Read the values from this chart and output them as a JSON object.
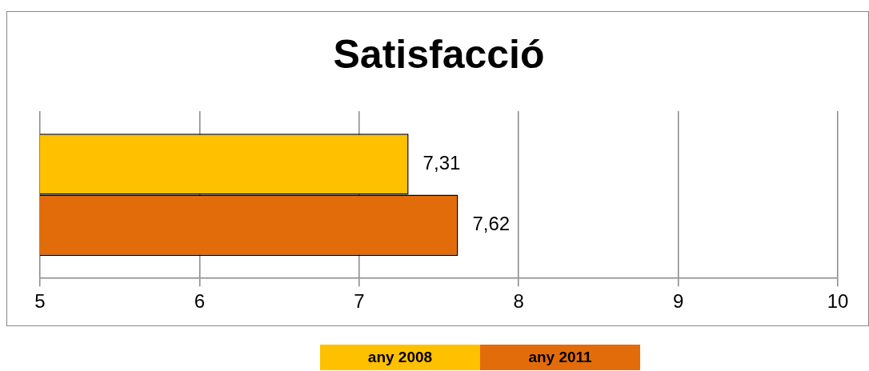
{
  "chart_data": {
    "type": "bar",
    "title": "Satisfacció",
    "orientation": "horizontal",
    "categories": [
      null
    ],
    "series": [
      {
        "name": "any 2008",
        "color": "#ffc000",
        "values": [
          7.31
        ],
        "value_labels": [
          "7,31"
        ]
      },
      {
        "name": "any 2011",
        "color": "#e36c0a",
        "values": [
          7.62
        ],
        "value_labels": [
          "7,62"
        ]
      }
    ],
    "xlim": [
      5,
      10
    ],
    "xticks": [
      5,
      6,
      7,
      8,
      9,
      10
    ],
    "grid": "x",
    "legend": "bottom"
  }
}
